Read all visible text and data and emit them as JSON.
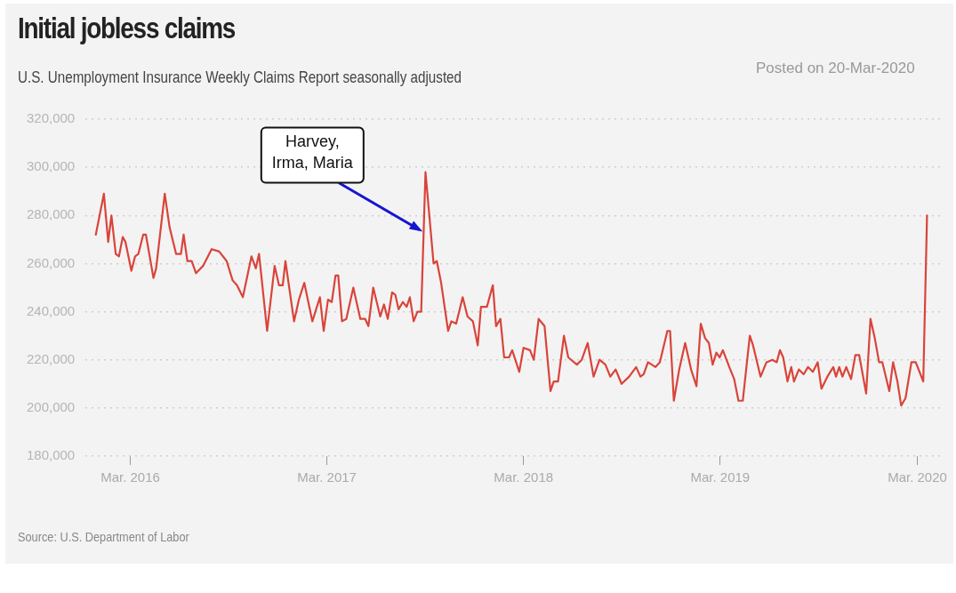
{
  "chart_data": {
    "type": "line",
    "title": "Initial jobless claims",
    "subtitle": "U.S. Unemployment Insurance Weekly Claims Report seasonally adjusted",
    "annotations": [
      {
        "text": "Harvey, Irma, Maria",
        "x": "2017-08-20",
        "y": 274000
      },
      "Posted on 20-Mar-2020",
      "Source: U.S. Department of Labor"
    ],
    "x": [
      "2015-12-28",
      "2016-01-12",
      "2016-01-20",
      "2016-01-26",
      "2016-02-03",
      "2016-02-09",
      "2016-02-16",
      "2016-02-21",
      "2016-03-03",
      "2016-03-10",
      "2016-03-16",
      "2016-03-25",
      "2016-03-30",
      "2016-04-13",
      "2016-04-18",
      "2016-05-04",
      "2016-05-13",
      "2016-05-25",
      "2016-06-03",
      "2016-06-08",
      "2016-06-15",
      "2016-06-23",
      "2016-07-01",
      "2016-07-14",
      "2016-07-30",
      "2016-08-13",
      "2016-08-27",
      "2016-09-07",
      "2016-09-15",
      "2016-09-26",
      "2016-10-12",
      "2016-10-20",
      "2016-10-26",
      "2016-11-10",
      "2016-11-24",
      "2016-12-02",
      "2016-12-09",
      "2016-12-14",
      "2016-12-30",
      "2017-01-08",
      "2017-01-18",
      "2017-02-02",
      "2017-02-16",
      "2017-02-23",
      "2017-03-03",
      "2017-03-10",
      "2017-03-17",
      "2017-03-22",
      "2017-03-29",
      "2017-04-06",
      "2017-04-19",
      "2017-05-02",
      "2017-05-11",
      "2017-05-17",
      "2017-05-26",
      "2017-06-08",
      "2017-06-15",
      "2017-06-22",
      "2017-06-30",
      "2017-07-06",
      "2017-07-12",
      "2017-07-20",
      "2017-07-27",
      "2017-08-02",
      "2017-08-09",
      "2017-08-16",
      "2017-08-23",
      "2017-08-31",
      "2017-09-15",
      "2017-09-21",
      "2017-09-29",
      "2017-10-12",
      "2017-10-18",
      "2017-10-27",
      "2017-11-08",
      "2017-11-17",
      "2017-11-27",
      "2017-12-06",
      "2017-12-12",
      "2017-12-23",
      "2018-01-03",
      "2018-01-09",
      "2018-01-17",
      "2018-01-24",
      "2018-02-02",
      "2018-02-08",
      "2018-02-21",
      "2018-03-01",
      "2018-03-13",
      "2018-03-20",
      "2018-03-29",
      "2018-04-09",
      "2018-04-20",
      "2018-04-26",
      "2018-05-04",
      "2018-05-15",
      "2018-05-23",
      "2018-06-08",
      "2018-06-17",
      "2018-06-28",
      "2018-07-09",
      "2018-07-20",
      "2018-07-31",
      "2018-08-09",
      "2018-08-19",
      "2018-08-30",
      "2018-09-13",
      "2018-09-26",
      "2018-10-04",
      "2018-10-10",
      "2018-10-18",
      "2018-11-01",
      "2018-11-09",
      "2018-11-23",
      "2018-11-28",
      "2018-12-05",
      "2018-12-15",
      "2018-12-26",
      "2019-01-06",
      "2019-01-16",
      "2019-01-24",
      "2019-02-01",
      "2019-02-08",
      "2019-02-15",
      "2019-02-22",
      "2019-02-28",
      "2019-03-06",
      "2019-03-18",
      "2019-03-27",
      "2019-04-04",
      "2019-04-12",
      "2019-04-25",
      "2019-05-01",
      "2019-05-15",
      "2019-05-26",
      "2019-06-06",
      "2019-06-14",
      "2019-06-20",
      "2019-06-26",
      "2019-07-04",
      "2019-07-11",
      "2019-07-16",
      "2019-07-25",
      "2019-08-03",
      "2019-08-11",
      "2019-08-20",
      "2019-08-29",
      "2019-09-05",
      "2019-09-16",
      "2019-09-27",
      "2019-10-02",
      "2019-10-08",
      "2019-10-14",
      "2019-10-21",
      "2019-10-30",
      "2019-11-07",
      "2019-11-14",
      "2019-11-27",
      "2019-12-05",
      "2019-12-13",
      "2019-12-21",
      "2019-12-27",
      "2020-01-09",
      "2020-01-16",
      "2020-01-24",
      "2020-01-31",
      "2020-02-08",
      "2020-02-19",
      "2020-02-27",
      "2020-03-12",
      "2020-03-19"
    ],
    "series": [
      {
        "color": "#d9443a",
        "values": [
          272000,
          289000,
          269000,
          280000,
          264000,
          263000,
          271000,
          269000,
          257000,
          263000,
          264000,
          272000,
          272000,
          254000,
          258000,
          289000,
          275000,
          264000,
          264000,
          272000,
          261000,
          261000,
          256000,
          259000,
          266000,
          265000,
          261000,
          253000,
          251000,
          246000,
          263000,
          258000,
          264000,
          232000,
          259000,
          251000,
          251000,
          261000,
          236000,
          245000,
          252000,
          236000,
          246000,
          232000,
          245000,
          244000,
          255000,
          255000,
          236000,
          237000,
          250000,
          237000,
          237000,
          234000,
          250000,
          238000,
          243000,
          237000,
          248000,
          247000,
          241000,
          244000,
          242000,
          246000,
          236000,
          240000,
          240000,
          298000,
          260000,
          261000,
          252000,
          232000,
          236000,
          235000,
          246000,
          238000,
          236000,
          226000,
          242000,
          242000,
          251000,
          234000,
          237000,
          221000,
          221000,
          224000,
          215000,
          225000,
          224000,
          220000,
          237000,
          234000,
          207000,
          211000,
          211000,
          230000,
          221000,
          218000,
          220000,
          227000,
          213000,
          220000,
          218000,
          213000,
          216000,
          210000,
          213000,
          217000,
          213000,
          214000,
          219000,
          217000,
          219000,
          232000,
          232000,
          203000,
          216000,
          227000,
          216000,
          209000,
          235000,
          229000,
          227000,
          218000,
          223000,
          221000,
          224000,
          217000,
          212000,
          203000,
          203000,
          230000,
          226000,
          213000,
          219000,
          220000,
          219000,
          224000,
          221000,
          211000,
          217000,
          211000,
          216000,
          214000,
          217000,
          215000,
          219000,
          208000,
          213000,
          217000,
          213000,
          217000,
          213000,
          217000,
          212000,
          222000,
          222000,
          206000,
          237000,
          229000,
          219000,
          219000,
          207000,
          219000,
          211000,
          201000,
          204000,
          219000,
          219000,
          211000,
          280000
        ]
      }
    ],
    "xlim": [
      "2015-12-09",
      "2020-04-17"
    ],
    "ylim": [
      180000,
      320000
    ],
    "xticks": [
      {
        "value": "2016-03-01",
        "label": "Mar. 2016"
      },
      {
        "value": "2017-03-01",
        "label": "Mar. 2017"
      },
      {
        "value": "2018-03-01",
        "label": "Mar. 2018"
      },
      {
        "value": "2019-03-01",
        "label": "Mar. 2019"
      },
      {
        "value": "2020-03-01",
        "label": "Mar. 2020"
      }
    ],
    "yticks": [
      {
        "value": 180000,
        "label": "180,000"
      },
      {
        "value": 200000,
        "label": "200,000"
      },
      {
        "value": 220000,
        "label": "220,000"
      },
      {
        "value": 240000,
        "label": "240,000"
      },
      {
        "value": 260000,
        "label": "260,000"
      },
      {
        "value": 280000,
        "label": "280,000"
      },
      {
        "value": 300000,
        "label": "300,000"
      },
      {
        "value": 320000,
        "label": "320,000"
      }
    ],
    "grid": "y",
    "marker": "none",
    "line_style": "solid"
  }
}
